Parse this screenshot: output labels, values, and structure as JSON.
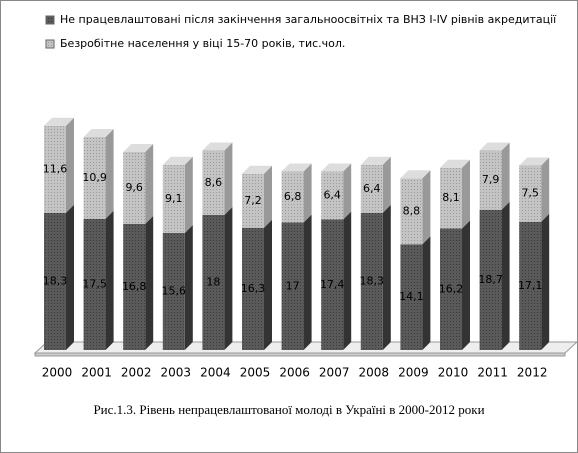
{
  "chart_data": {
    "type": "bar3d_stacked",
    "title": "Рис.1.3. Рівень непрацевлаштованої молоді в Україні в 2000-2012 роки",
    "categories": [
      "2000",
      "2001",
      "2002",
      "2003",
      "2004",
      "2005",
      "2006",
      "2007",
      "2008",
      "2009",
      "2010",
      "2011",
      "2012"
    ],
    "series": [
      {
        "name": "Не працевлаштовані після закінчення загальноосвітніх та ВНЗ I-IV рівнів акредитації",
        "color": "#5a5a5a",
        "values": [
          18.3,
          17.5,
          16.8,
          15.6,
          18,
          16.3,
          17,
          17.4,
          18.3,
          14.1,
          16.2,
          18.7,
          17.1
        ],
        "value_labels": [
          "18,3",
          "17,5",
          "16,8",
          "15,6",
          "18",
          "16,3",
          "17",
          "17,4",
          "18,3",
          "14,1",
          "16,2",
          "18,7",
          "17,1"
        ]
      },
      {
        "name": "Безробітне населення у віці 15-70 років, тис.чол.",
        "color": "#bdbdbd",
        "values": [
          11.6,
          10.9,
          9.6,
          9.1,
          8.6,
          7.2,
          6.8,
          6.4,
          6.4,
          8.8,
          8.1,
          7.9,
          7.5
        ],
        "value_labels": [
          "11,6",
          "10,9",
          "9,6",
          "9,1",
          "8,6",
          "7,2",
          "6,8",
          "6,4",
          "6,4",
          "8,8",
          "8,1",
          "7,9",
          "7,5"
        ]
      }
    ]
  }
}
